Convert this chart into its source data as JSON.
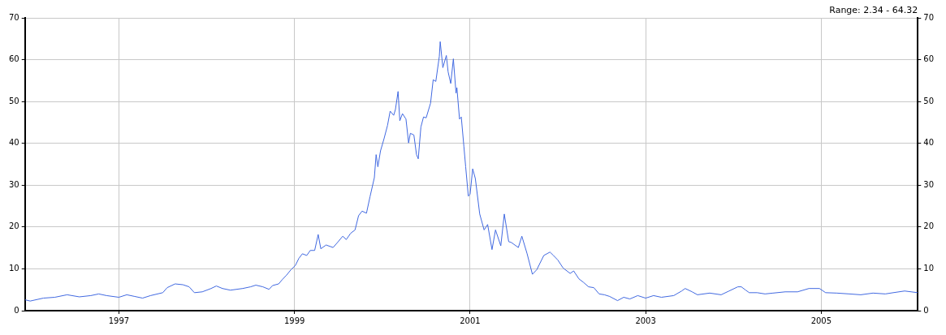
{
  "chart_data": {
    "type": "line",
    "x": [
      1995.93,
      1995.99,
      1996.14,
      1996.27,
      1996.41,
      1996.55,
      1996.68,
      1996.77,
      1996.86,
      1997.0,
      1997.09,
      1997.18,
      1997.27,
      1997.36,
      1997.5,
      1997.55,
      1997.64,
      1997.73,
      1997.8,
      1997.86,
      1997.95,
      1998.05,
      1998.11,
      1998.18,
      1998.27,
      1998.41,
      1998.5,
      1998.56,
      1998.64,
      1998.71,
      1998.75,
      1998.82,
      1998.86,
      1998.91,
      1998.96,
      1999.01,
      1999.05,
      1999.09,
      1999.14,
      1999.18,
      1999.23,
      1999.27,
      1999.3,
      1999.36,
      1999.44,
      1999.49,
      1999.55,
      1999.59,
      1999.64,
      1999.69,
      1999.73,
      1999.77,
      1999.82,
      1999.86,
      1999.91,
      1999.93,
      1999.95,
      1999.98,
      2000.02,
      2000.06,
      2000.09,
      2000.13,
      2000.15,
      2000.18,
      2000.2,
      2000.23,
      2000.27,
      2000.3,
      2000.32,
      2000.36,
      2000.39,
      2000.41,
      2000.44,
      2000.47,
      2000.5,
      2000.55,
      2000.58,
      2000.61,
      2000.65,
      2000.66,
      2000.69,
      2000.73,
      2000.75,
      2000.78,
      2000.81,
      2000.84,
      2000.85,
      2000.88,
      2000.9,
      2000.93,
      2000.95,
      2000.98,
      2001.0,
      2001.03,
      2001.06,
      2001.11,
      2001.16,
      2001.2,
      2001.25,
      2001.29,
      2001.35,
      2001.39,
      2001.44,
      2001.47,
      2001.55,
      2001.59,
      2001.65,
      2001.71,
      2001.76,
      2001.84,
      2001.91,
      2001.95,
      2002.0,
      2002.06,
      2002.14,
      2002.18,
      2002.24,
      2002.29,
      2002.35,
      2002.41,
      2002.47,
      2002.53,
      2002.59,
      2002.68,
      2002.75,
      2002.82,
      2002.91,
      2003.0,
      2003.09,
      2003.18,
      2003.32,
      2003.41,
      2003.45,
      2003.53,
      2003.59,
      2003.73,
      2003.86,
      2003.95,
      2004.05,
      2004.09,
      2004.14,
      2004.18,
      2004.27,
      2004.36,
      2004.45,
      2004.59,
      2004.73,
      2004.86,
      2004.98,
      2005.05,
      2005.18,
      2005.32,
      2005.45,
      2005.59,
      2005.73,
      2005.82,
      2005.95,
      2006.1
    ],
    "series": [
      {
        "color": "#4169e1",
        "values": [
          2.6,
          2.3,
          3.0,
          3.2,
          3.8,
          3.3,
          3.6,
          4.0,
          3.6,
          3.2,
          3.8,
          3.4,
          3.0,
          3.6,
          4.3,
          5.5,
          6.4,
          6.2,
          5.7,
          4.3,
          4.5,
          5.3,
          5.9,
          5.3,
          4.9,
          5.3,
          5.7,
          6.1,
          5.7,
          5.1,
          6.0,
          6.4,
          7.4,
          8.5,
          9.8,
          10.8,
          12.5,
          13.6,
          13.2,
          14.4,
          14.4,
          18.2,
          14.8,
          15.7,
          15.1,
          16.3,
          17.8,
          17.0,
          18.5,
          19.3,
          22.7,
          23.8,
          23.3,
          27.2,
          31.8,
          37.3,
          34.4,
          38.2,
          41.1,
          44.3,
          47.7,
          46.7,
          48.1,
          52.4,
          45.4,
          47.1,
          45.8,
          40.1,
          42.4,
          42.0,
          37.3,
          36.3,
          43.9,
          46.3,
          46.1,
          49.6,
          55.2,
          54.8,
          60.8,
          64.3,
          58.1,
          61.0,
          57.1,
          54.3,
          60.2,
          52.0,
          53.3,
          45.8,
          46.3,
          39.2,
          34.4,
          27.4,
          27.8,
          33.9,
          31.6,
          23.1,
          19.3,
          20.6,
          14.6,
          19.3,
          15.5,
          23.1,
          16.5,
          16.3,
          15.1,
          17.8,
          13.6,
          8.7,
          9.8,
          13.2,
          14.0,
          13.2,
          12.1,
          10.2,
          8.9,
          9.5,
          7.6,
          6.8,
          5.7,
          5.5,
          4.0,
          3.8,
          3.4,
          2.4,
          3.2,
          2.8,
          3.6,
          3.0,
          3.6,
          3.2,
          3.6,
          4.7,
          5.3,
          4.5,
          3.8,
          4.2,
          3.8,
          4.7,
          5.7,
          5.7,
          4.9,
          4.3,
          4.3,
          4.0,
          4.2,
          4.5,
          4.5,
          5.3,
          5.3,
          4.3,
          4.2,
          4.0,
          3.8,
          4.2,
          4.0,
          4.3,
          4.7,
          4.3
        ]
      }
    ],
    "xlim": [
      1995.93,
      2006.1
    ],
    "xticks": [
      1997,
      1999,
      2001,
      2003,
      2005
    ],
    "ylim": [
      0,
      70
    ],
    "yticks": [
      0,
      10,
      20,
      30,
      40,
      50,
      60,
      70
    ],
    "y2lim": [
      0,
      70
    ],
    "y2ticks": [
      0,
      10,
      20,
      30,
      40,
      50,
      60,
      70
    ],
    "grid": true,
    "annotations": [
      "Range: 2.34 - 64.32"
    ]
  }
}
